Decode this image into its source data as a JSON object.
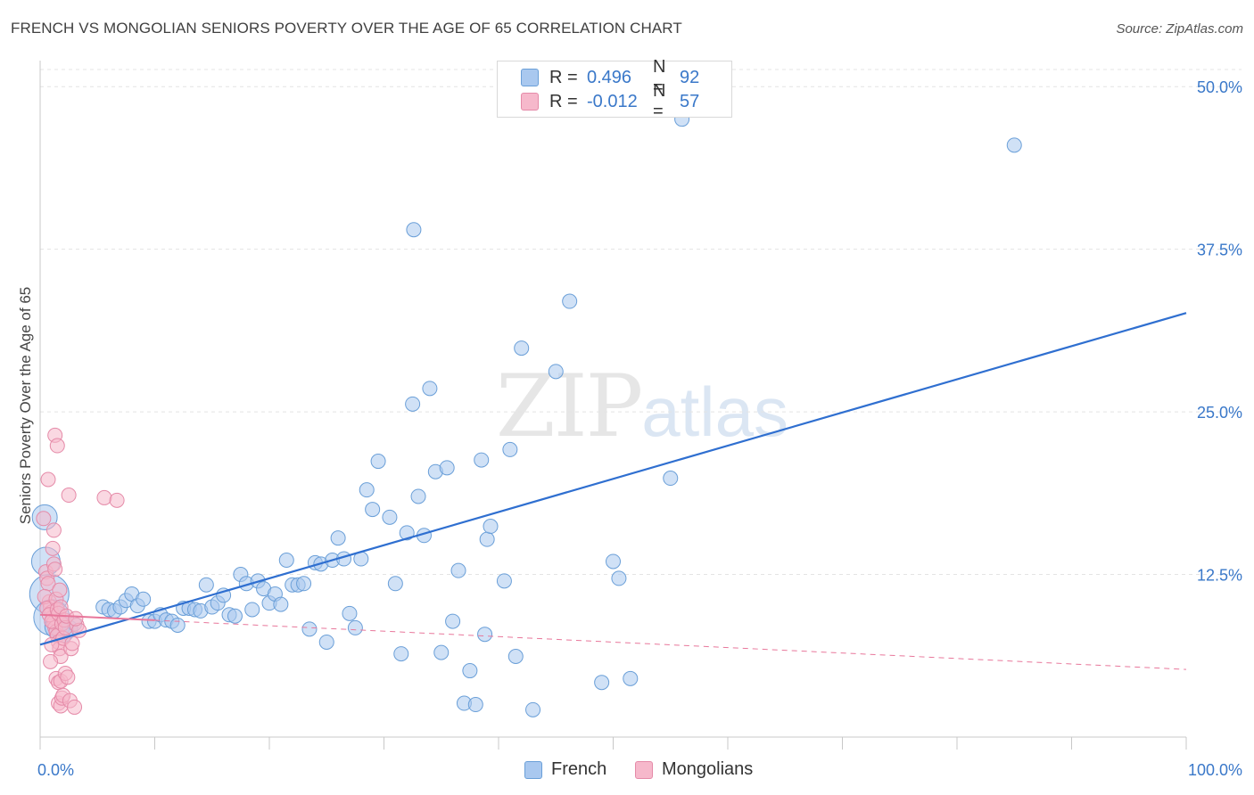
{
  "header": {
    "title": "FRENCH VS MONGOLIAN SENIORS POVERTY OVER THE AGE OF 65 CORRELATION CHART",
    "source": "Source: ZipAtlas.com"
  },
  "watermark": {
    "zip": "ZIP",
    "atlas": "atlas"
  },
  "legend": {
    "rows": [
      {
        "r_label": "R =",
        "r_value": "0.496",
        "n_label": "N =",
        "n_value": "92"
      },
      {
        "r_label": "R =",
        "r_value": "-0.012",
        "n_label": "N =",
        "n_value": "57"
      }
    ]
  },
  "colors": {
    "french_fill": "#a9c8ef",
    "french_stroke": "#6a9fd8",
    "french_line": "#2f6fd0",
    "mongolian_fill": "#f6b8cb",
    "mongolian_stroke": "#e58aa8",
    "mongolian_line": "#e8779b",
    "grid": "#e4e4e4",
    "tick_label": "#3a78c9"
  },
  "chart_data": {
    "type": "scatter",
    "title": "FRENCH VS MONGOLIAN SENIORS POVERTY OVER THE AGE OF 65 CORRELATION CHART",
    "xlabel": "",
    "ylabel": "Seniors Poverty Over the Age of 65",
    "xlim": [
      0,
      100
    ],
    "ylim": [
      0,
      52
    ],
    "x_tick_labels": [
      "0.0%",
      "100.0%"
    ],
    "y_ticks": [
      12.5,
      25.0,
      37.5,
      50.0
    ],
    "y_tick_labels": [
      "12.5%",
      "25.0%",
      "37.5%",
      "50.0%"
    ],
    "series": [
      {
        "name": "French",
        "R": 0.496,
        "N": 92,
        "trend": {
          "x": [
            0,
            100
          ],
          "y": [
            7.1,
            32.6
          ],
          "dashed": false
        },
        "points": [
          [
            0.4,
            16.9,
            14
          ],
          [
            0.5,
            13.5,
            16
          ],
          [
            0.8,
            11.0,
            22
          ],
          [
            1.0,
            9.2,
            20
          ],
          [
            1.5,
            8.5,
            14
          ],
          [
            2.0,
            8.1,
            12
          ],
          [
            2.5,
            8.3,
            10
          ],
          [
            3.0,
            8.7,
            8
          ],
          [
            5.5,
            10.0,
            8
          ],
          [
            6.0,
            9.8,
            8
          ],
          [
            6.5,
            9.7,
            8
          ],
          [
            7.0,
            10.0,
            8
          ],
          [
            7.5,
            10.5,
            8
          ],
          [
            8.0,
            11.0,
            8
          ],
          [
            8.5,
            10.1,
            8
          ],
          [
            9.0,
            10.6,
            8
          ],
          [
            9.5,
            8.9,
            8
          ],
          [
            10.0,
            8.9,
            8
          ],
          [
            10.5,
            9.4,
            8
          ],
          [
            11.0,
            9.0,
            8
          ],
          [
            11.5,
            8.9,
            8
          ],
          [
            12.0,
            8.6,
            8
          ],
          [
            12.5,
            9.9,
            8
          ],
          [
            13.0,
            9.9,
            8
          ],
          [
            13.5,
            9.8,
            8
          ],
          [
            14.0,
            9.7,
            8
          ],
          [
            14.5,
            11.7,
            8
          ],
          [
            15.0,
            10.0,
            8
          ],
          [
            15.5,
            10.3,
            8
          ],
          [
            16.0,
            10.9,
            8
          ],
          [
            16.5,
            9.4,
            8
          ],
          [
            17.0,
            9.3,
            8
          ],
          [
            17.5,
            12.5,
            8
          ],
          [
            18.0,
            11.8,
            8
          ],
          [
            18.5,
            9.8,
            8
          ],
          [
            19.0,
            12.0,
            8
          ],
          [
            19.5,
            11.4,
            8
          ],
          [
            20.0,
            10.3,
            8
          ],
          [
            20.5,
            11.0,
            8
          ],
          [
            21.0,
            10.2,
            8
          ],
          [
            21.5,
            13.6,
            8
          ],
          [
            22.0,
            11.7,
            8
          ],
          [
            22.5,
            11.7,
            8
          ],
          [
            23.0,
            11.8,
            8
          ],
          [
            23.5,
            8.3,
            8
          ],
          [
            24.0,
            13.4,
            8
          ],
          [
            24.5,
            13.3,
            8
          ],
          [
            25.0,
            7.3,
            8
          ],
          [
            25.5,
            13.6,
            8
          ],
          [
            26.0,
            15.3,
            8
          ],
          [
            26.5,
            13.7,
            8
          ],
          [
            27.0,
            9.5,
            8
          ],
          [
            27.5,
            8.4,
            8
          ],
          [
            28.0,
            13.7,
            8
          ],
          [
            28.5,
            19.0,
            8
          ],
          [
            29.0,
            17.5,
            8
          ],
          [
            29.5,
            21.2,
            8
          ],
          [
            30.5,
            16.9,
            8
          ],
          [
            31.0,
            11.8,
            8
          ],
          [
            31.5,
            6.4,
            8
          ],
          [
            32.0,
            15.7,
            8
          ],
          [
            32.5,
            25.6,
            8
          ],
          [
            33.0,
            18.5,
            8
          ],
          [
            33.5,
            15.5,
            8
          ],
          [
            32.6,
            39.0,
            8
          ],
          [
            34.0,
            26.8,
            8
          ],
          [
            34.5,
            20.4,
            8
          ],
          [
            35.0,
            6.5,
            8
          ],
          [
            35.5,
            20.7,
            8
          ],
          [
            36.0,
            8.9,
            8
          ],
          [
            36.5,
            12.8,
            8
          ],
          [
            37.0,
            2.6,
            8
          ],
          [
            37.5,
            5.1,
            8
          ],
          [
            38.0,
            2.5,
            8
          ],
          [
            38.5,
            21.3,
            8
          ],
          [
            38.8,
            7.9,
            8
          ],
          [
            39.0,
            15.2,
            8
          ],
          [
            39.3,
            16.2,
            8
          ],
          [
            40.5,
            12.0,
            8
          ],
          [
            41.0,
            22.1,
            8
          ],
          [
            41.5,
            6.2,
            8
          ],
          [
            42.0,
            29.9,
            8
          ],
          [
            43.0,
            2.1,
            8
          ],
          [
            45.0,
            28.1,
            8
          ],
          [
            46.2,
            33.5,
            8
          ],
          [
            49.0,
            4.2,
            8
          ],
          [
            50.0,
            13.5,
            8
          ],
          [
            50.5,
            12.2,
            8
          ],
          [
            51.5,
            4.5,
            8
          ],
          [
            55.0,
            19.9,
            8
          ],
          [
            85.0,
            45.5,
            8
          ],
          [
            56.0,
            47.5,
            8
          ]
        ]
      },
      {
        "name": "Mongolians",
        "R": -0.012,
        "N": 57,
        "trend": {
          "x": [
            0,
            100
          ],
          "y": [
            9.4,
            5.2
          ],
          "dashed": true,
          "solid_until_x": 10
        },
        "points": [
          [
            0.3,
            16.8,
            8
          ],
          [
            0.5,
            12.7,
            8
          ],
          [
            0.6,
            12.2,
            8
          ],
          [
            0.7,
            11.8,
            8
          ],
          [
            0.8,
            10.4,
            8
          ],
          [
            0.9,
            10.0,
            8
          ],
          [
            1.0,
            9.6,
            8
          ],
          [
            1.1,
            9.2,
            8
          ],
          [
            1.2,
            8.8,
            8
          ],
          [
            1.3,
            8.4,
            8
          ],
          [
            1.4,
            8.1,
            8
          ],
          [
            1.5,
            7.8,
            8
          ],
          [
            1.6,
            7.3,
            8
          ],
          [
            1.7,
            6.8,
            8
          ],
          [
            1.8,
            6.2,
            8
          ],
          [
            0.4,
            10.8,
            8
          ],
          [
            0.6,
            9.9,
            8
          ],
          [
            0.8,
            9.4,
            8
          ],
          [
            1.0,
            8.9,
            8
          ],
          [
            1.2,
            13.3,
            8
          ],
          [
            1.3,
            12.9,
            8
          ],
          [
            1.4,
            10.6,
            8
          ],
          [
            1.5,
            9.8,
            8
          ],
          [
            1.6,
            9.5,
            8
          ],
          [
            1.7,
            11.3,
            8
          ],
          [
            1.8,
            10.0,
            8
          ],
          [
            1.9,
            8.7,
            8
          ],
          [
            2.0,
            7.6,
            8
          ],
          [
            2.1,
            9.0,
            8
          ],
          [
            0.7,
            19.8,
            8
          ],
          [
            1.2,
            15.9,
            8
          ],
          [
            1.3,
            23.2,
            8
          ],
          [
            1.5,
            22.4,
            8
          ],
          [
            2.5,
            18.6,
            8
          ],
          [
            1.4,
            4.5,
            8
          ],
          [
            1.6,
            4.2,
            8
          ],
          [
            1.8,
            4.3,
            8
          ],
          [
            2.2,
            4.9,
            8
          ],
          [
            2.4,
            4.6,
            8
          ],
          [
            1.6,
            2.6,
            8
          ],
          [
            1.8,
            2.4,
            8
          ],
          [
            1.9,
            3.0,
            8
          ],
          [
            2.0,
            3.2,
            8
          ],
          [
            2.6,
            2.8,
            8
          ],
          [
            3.0,
            2.3,
            8
          ],
          [
            2.7,
            6.8,
            8
          ],
          [
            2.2,
            8.4,
            8
          ],
          [
            3.2,
            8.6,
            8
          ],
          [
            3.4,
            8.2,
            8
          ],
          [
            5.6,
            18.4,
            8
          ],
          [
            6.7,
            18.2,
            8
          ],
          [
            1.1,
            14.5,
            8
          ],
          [
            1.0,
            7.1,
            8
          ],
          [
            2.3,
            9.3,
            8
          ],
          [
            2.8,
            7.2,
            8
          ],
          [
            0.9,
            5.8,
            8
          ],
          [
            3.1,
            9.1,
            8
          ]
        ]
      }
    ]
  },
  "bottom_legend": {
    "items": [
      "French",
      "Mongolians"
    ]
  }
}
